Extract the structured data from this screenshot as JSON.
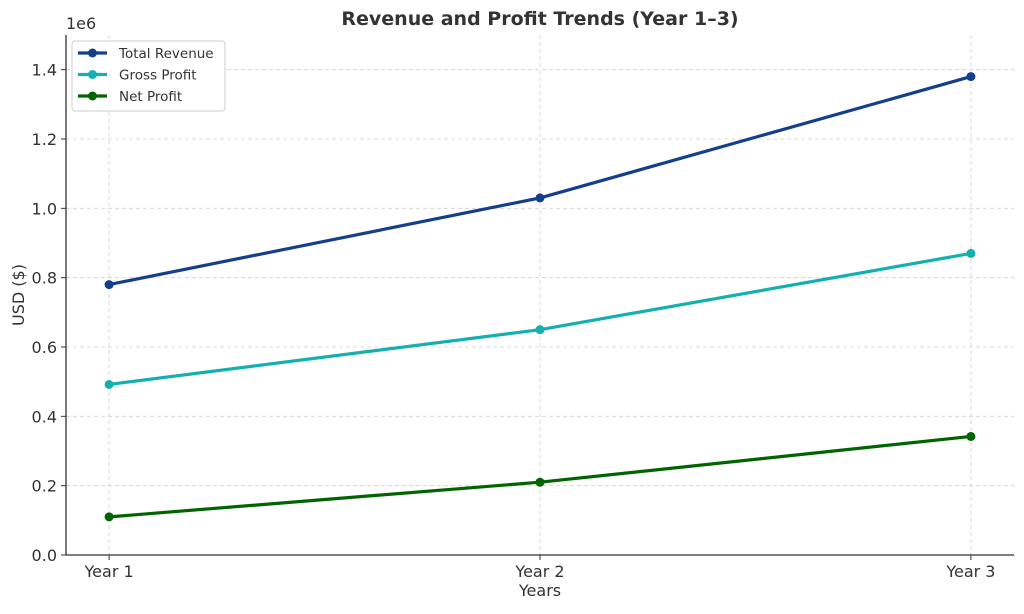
{
  "chart_data": {
    "type": "line",
    "title": "Revenue and Profit Trends (Year 1–3)",
    "xlabel": "Years",
    "ylabel": "USD ($)",
    "y_offset_label": "1e6",
    "categories": [
      "Year 1",
      "Year 2",
      "Year 3"
    ],
    "ylim": [
      0,
      1.5
    ],
    "y_scale": 1000000,
    "yticks": [
      "0.0",
      "0.2",
      "0.4",
      "0.6",
      "0.8",
      "1.0",
      "1.2",
      "1.4"
    ],
    "grid": true,
    "legend_position": "top-left",
    "series": [
      {
        "name": "Total Revenue",
        "color": "#143f8a",
        "values": [
          780000,
          1030000,
          1380000
        ]
      },
      {
        "name": "Gross Profit",
        "color": "#14b0b0",
        "values": [
          492000,
          650000,
          870000
        ]
      },
      {
        "name": "Net Profit",
        "color": "#006400",
        "values": [
          110000,
          210000,
          342000
        ]
      }
    ]
  }
}
